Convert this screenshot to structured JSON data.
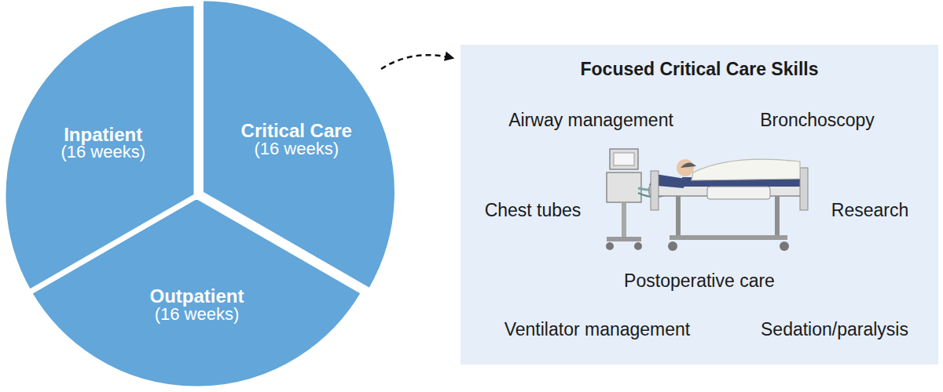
{
  "chart_data": {
    "type": "pie",
    "categories": [
      "Critical Care",
      "Outpatient",
      "Inpatient"
    ],
    "values": [
      16,
      16,
      16
    ],
    "value_labels": [
      "(16 weeks)",
      "(16 weeks)",
      "(16 weeks)"
    ],
    "color": "#62a6da",
    "data_labels": true
  },
  "callout": {
    "title": "Focused Critical Care Skills",
    "items": [
      "Airway management",
      "Bronchoscopy",
      "Chest tubes",
      "Research",
      "Postoperative care",
      "Ventilator management",
      "Sedation/paralysis"
    ]
  }
}
